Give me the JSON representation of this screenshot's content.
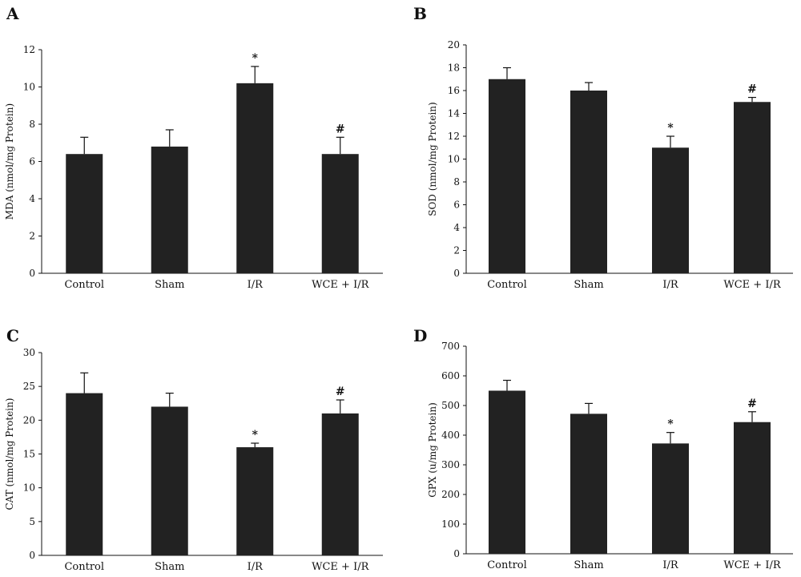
{
  "chart_data": [
    {
      "panel": "A",
      "type": "bar",
      "categories": [
        "Control",
        "Sham",
        "I/R",
        "WCE + I/R"
      ],
      "values": [
        6.4,
        6.8,
        10.2,
        6.4
      ],
      "errors": [
        0.9,
        0.9,
        0.9,
        0.9
      ],
      "annotations": [
        "",
        "",
        "*",
        "#"
      ],
      "ylabel": "MDA (nmol/mg Protein)",
      "ylim": [
        0,
        12
      ],
      "yticks": [
        0,
        2,
        4,
        6,
        8,
        10,
        12
      ],
      "bar_color": "#222222"
    },
    {
      "panel": "B",
      "type": "bar",
      "categories": [
        "Control",
        "Sham",
        "I/R",
        "WCE + I/R"
      ],
      "values": [
        17,
        16,
        11,
        15
      ],
      "errors": [
        1,
        0.7,
        1,
        0.4
      ],
      "annotations": [
        "",
        "",
        "*",
        "#"
      ],
      "ylabel": "SOD (nmol/mg Protein)",
      "ylim": [
        0,
        20
      ],
      "yticks": [
        0,
        2,
        4,
        6,
        8,
        10,
        12,
        14,
        16,
        18,
        20
      ],
      "bar_color": "#222222"
    },
    {
      "panel": "C",
      "type": "bar",
      "categories": [
        "Control",
        "Sham",
        "I/R",
        "WCE + I/R"
      ],
      "values": [
        24,
        22,
        16,
        21
      ],
      "errors": [
        3,
        2,
        0.6,
        2
      ],
      "annotations": [
        "",
        "",
        "*",
        "#"
      ],
      "ylabel": "CAT (nmol/mg Protein)",
      "ylim": [
        0,
        30
      ],
      "yticks": [
        0,
        5,
        10,
        15,
        20,
        25,
        30
      ],
      "bar_color": "#222222"
    },
    {
      "panel": "D",
      "type": "bar",
      "categories": [
        "Control",
        "Sham",
        "I/R",
        "WCE + I/R"
      ],
      "values": [
        550,
        472,
        372,
        444
      ],
      "errors": [
        35,
        35,
        37,
        35
      ],
      "annotations": [
        "",
        "",
        "*",
        "#"
      ],
      "ylabel": "GPX (u/mg Protein)",
      "ylim": [
        0,
        700
      ],
      "yticks": [
        0,
        100,
        200,
        300,
        400,
        500,
        600,
        700
      ],
      "bar_color": "#222222"
    }
  ]
}
